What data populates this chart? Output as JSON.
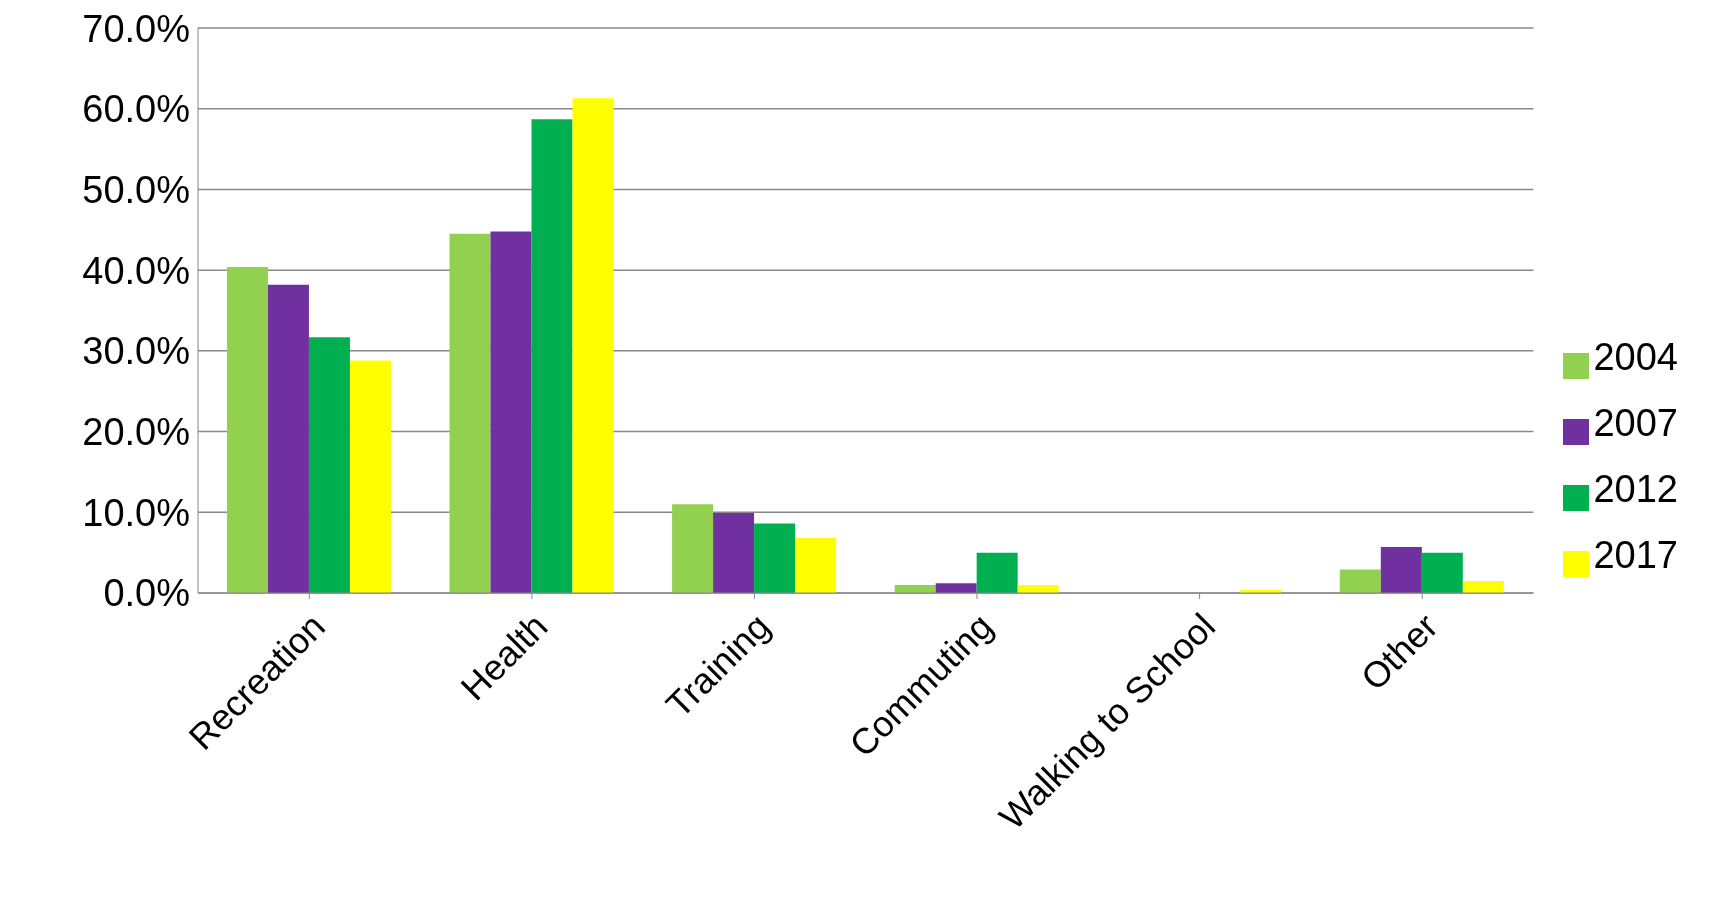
{
  "chart_data": {
    "type": "bar",
    "categories": [
      "Recreation",
      "Health",
      "Training",
      "Commuting",
      "Walking to School",
      "Other"
    ],
    "series": [
      {
        "name": "2004",
        "color": "#92d050",
        "values": [
          40.4,
          44.5,
          11.0,
          1.0,
          0,
          2.9
        ]
      },
      {
        "name": "2007",
        "color": "#7030a0",
        "values": [
          38.2,
          44.8,
          9.9,
          1.2,
          0,
          5.7
        ]
      },
      {
        "name": "2012",
        "color": "#00b050",
        "values": [
          31.7,
          58.7,
          8.6,
          5.0,
          0,
          5.0
        ]
      },
      {
        "name": "2017",
        "color": "#ffff00",
        "values": [
          28.8,
          61.3,
          6.8,
          1.0,
          0.4,
          1.5
        ]
      }
    ],
    "ylim": [
      0,
      70
    ],
    "yticks": [
      {
        "value": 0,
        "label": "0.0%"
      },
      {
        "value": 10,
        "label": "10.0%"
      },
      {
        "value": 20,
        "label": "20.0%"
      },
      {
        "value": 30,
        "label": "30.0%"
      },
      {
        "value": 40,
        "label": "40.0%"
      },
      {
        "value": 50,
        "label": "50.0%"
      },
      {
        "value": 60,
        "label": "60.0%"
      },
      {
        "value": 70,
        "label": "70.0%"
      }
    ],
    "grid": "y",
    "legend": "right"
  }
}
